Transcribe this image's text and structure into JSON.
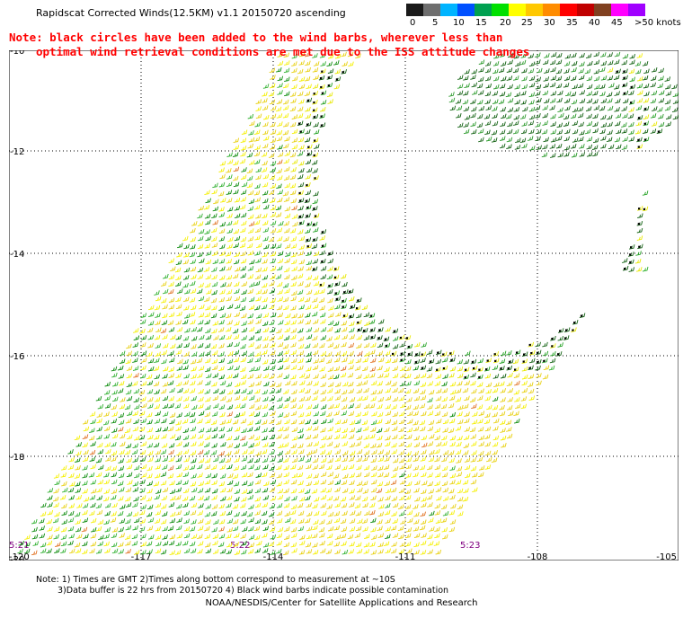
{
  "title": "Rapidscat Corrected Winds(12.5KM) v1.1 20150720 ascending",
  "note_line1": "Note: black circles have been added to the wind barbs, wherever less than",
  "note_line2": "optimal wind retrieval conditions are met due to the ISS attitude changes",
  "colorbar": {
    "colors": [
      "#1a1a1a",
      "#6e6e6e",
      "#00b4ff",
      "#0050ff",
      "#00a050",
      "#00e000",
      "#ffff00",
      "#ffc800",
      "#ff8c00",
      "#ff0000",
      "#c00000",
      "#804020",
      "#ff00ff",
      "#a000ff"
    ],
    "labels": [
      "0",
      "5",
      "10",
      "15",
      "20",
      "25",
      "30",
      "35",
      "40",
      "45",
      ">50 knots"
    ]
  },
  "map": {
    "lon_labels": [
      "-120",
      "-117",
      "-114",
      "-111",
      "-108",
      "-105"
    ],
    "lat_labels": [
      "-10",
      "-12",
      "-14",
      "-16",
      "-18",
      "-20"
    ],
    "time_labels": [
      "5:21",
      "5:22",
      "5:23"
    ]
  },
  "footnote1": "Note: 1) Times are GMT 2)Times along bottom correspond to measurement at ~10S",
  "footnote2": "3)Data buffer is 22 hrs from 20150720 4) Black wind barbs indicate possible contamination",
  "credit": "NOAA/NESDIS/Center for Satellite Applications and Research"
}
